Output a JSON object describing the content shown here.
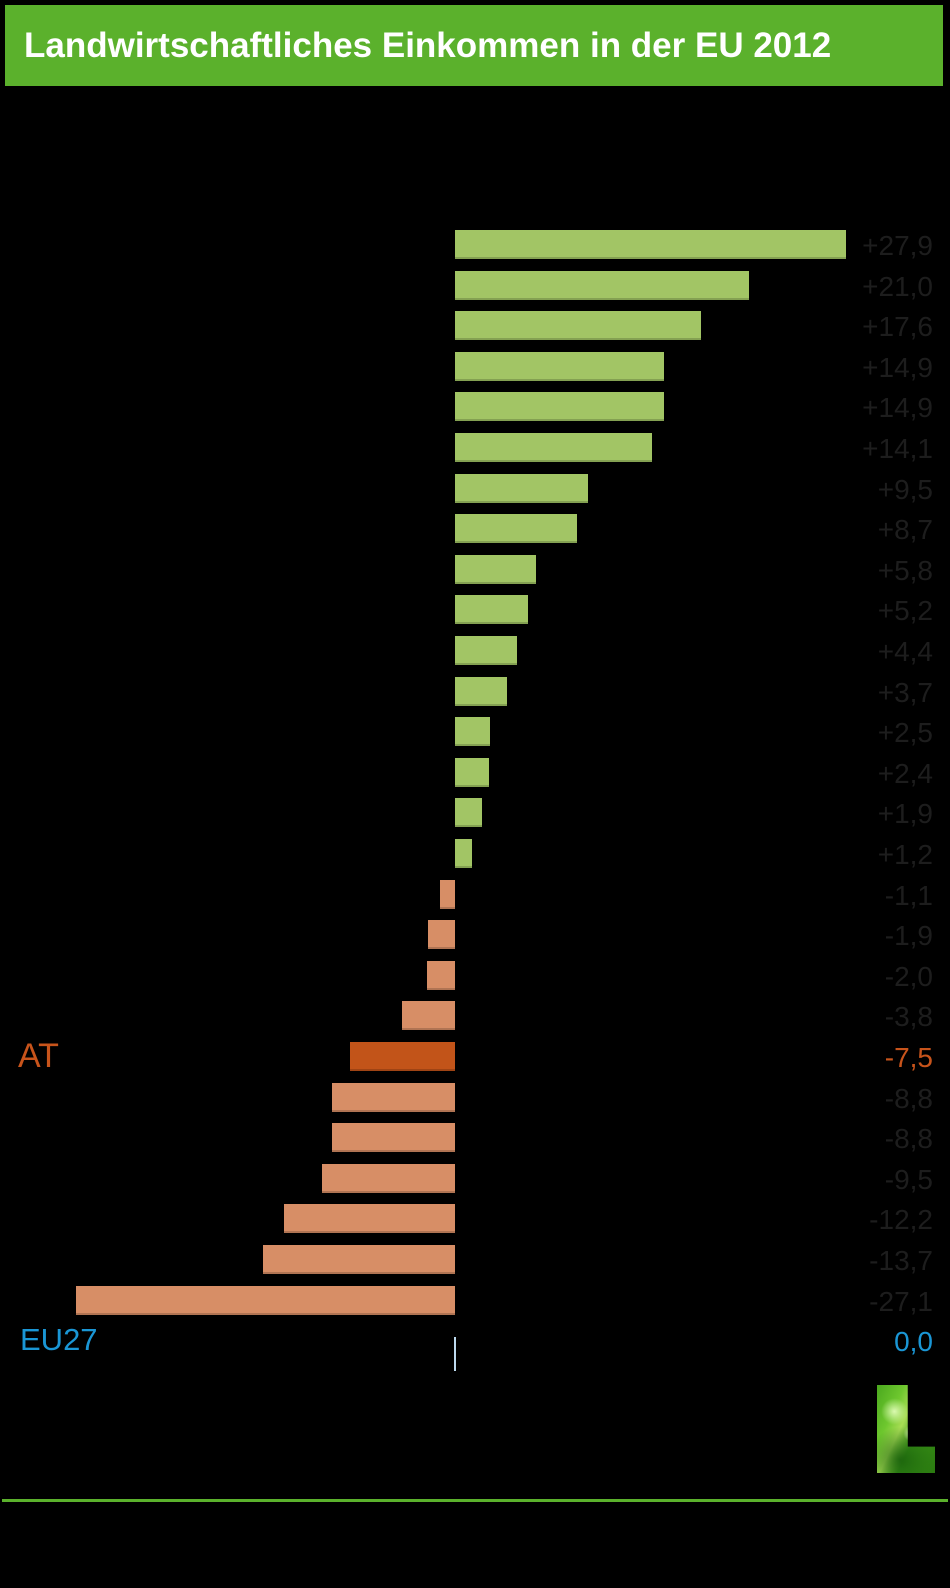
{
  "title": "Landwirtschaftliches Einkommen in der EU 2012",
  "colors": {
    "background": "#000000",
    "banner_green": "#5bb12c",
    "bar_positive_green": "#a2c565",
    "bar_negative_salmon": "#d78e66",
    "bar_highlight_orange": "#c25419",
    "highlight_label_orange": "#c8541b",
    "eu27_blue": "#1a96d5",
    "value_text_gray": "#1d1d1d",
    "title_text": "#ffffff",
    "zero_tick": "#bcd9ee"
  },
  "labels": {
    "at": "AT",
    "eu27": "EU27",
    "eu27_value": "0,0"
  },
  "logo": {
    "icon": "grass-letter-L-logo"
  },
  "chart_data": {
    "type": "bar",
    "orientation": "horizontal",
    "title": "Landwirtschaftliches Einkommen in der EU 2012",
    "value_unit": "% (German decimal comma, change vs. previous year)",
    "xlim": [
      -30,
      30
    ],
    "grid": false,
    "legend": false,
    "note": "Country axis labels are not visible in the image (black on black); only AT and EU27 are visible.",
    "rows": [
      {
        "label": "",
        "display": "+27,9",
        "value": 27.9,
        "kind": "positive"
      },
      {
        "label": "",
        "display": "+21,0",
        "value": 21.0,
        "kind": "positive"
      },
      {
        "label": "",
        "display": "+17,6",
        "value": 17.6,
        "kind": "positive"
      },
      {
        "label": "",
        "display": "+14,9",
        "value": 14.9,
        "kind": "positive"
      },
      {
        "label": "",
        "display": "+14,9",
        "value": 14.9,
        "kind": "positive"
      },
      {
        "label": "",
        "display": "+14,1",
        "value": 14.1,
        "kind": "positive"
      },
      {
        "label": "",
        "display": "+9,5",
        "value": 9.5,
        "kind": "positive"
      },
      {
        "label": "",
        "display": "+8,7",
        "value": 8.7,
        "kind": "positive"
      },
      {
        "label": "",
        "display": "+5,8",
        "value": 5.8,
        "kind": "positive"
      },
      {
        "label": "",
        "display": "+5,2",
        "value": 5.2,
        "kind": "positive"
      },
      {
        "label": "",
        "display": "+4,4",
        "value": 4.4,
        "kind": "positive"
      },
      {
        "label": "",
        "display": "+3,7",
        "value": 3.7,
        "kind": "positive"
      },
      {
        "label": "",
        "display": "+2,5",
        "value": 2.5,
        "kind": "positive"
      },
      {
        "label": "",
        "display": "+2,4",
        "value": 2.4,
        "kind": "positive"
      },
      {
        "label": "",
        "display": "+1,9",
        "value": 1.9,
        "kind": "positive"
      },
      {
        "label": "",
        "display": "+1,2",
        "value": 1.2,
        "kind": "positive"
      },
      {
        "label": "",
        "display": "-1,1",
        "value": -1.1,
        "kind": "negative"
      },
      {
        "label": "",
        "display": "-1,9",
        "value": -1.9,
        "kind": "negative"
      },
      {
        "label": "",
        "display": "-2,0",
        "value": -2.0,
        "kind": "negative"
      },
      {
        "label": "",
        "display": "-3,8",
        "value": -3.8,
        "kind": "negative"
      },
      {
        "label": "AT",
        "display": "-7,5",
        "value": -7.5,
        "kind": "highlight"
      },
      {
        "label": "",
        "display": "-8,8",
        "value": -8.8,
        "kind": "negative"
      },
      {
        "label": "",
        "display": "-8,8",
        "value": -8.8,
        "kind": "negative"
      },
      {
        "label": "",
        "display": "-9,5",
        "value": -9.5,
        "kind": "negative"
      },
      {
        "label": "",
        "display": "-12,2",
        "value": -12.2,
        "kind": "negative"
      },
      {
        "label": "",
        "display": "-13,7",
        "value": -13.7,
        "kind": "negative"
      },
      {
        "label": "",
        "display": "-27,1",
        "value": -27.1,
        "kind": "negative"
      }
    ],
    "baseline_row": {
      "label": "EU27",
      "display": "0,0",
      "value": 0.0
    }
  }
}
